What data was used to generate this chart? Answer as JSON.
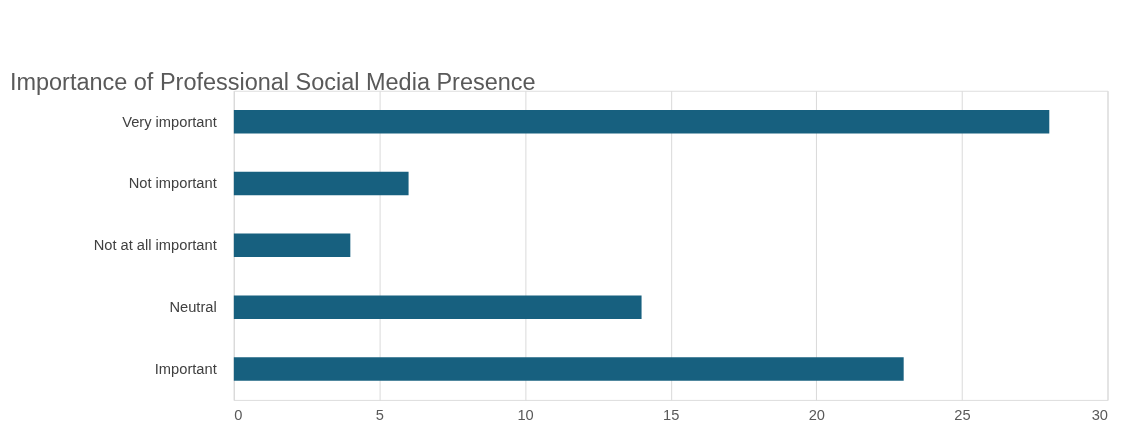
{
  "chart_data": {
    "type": "bar",
    "orientation": "horizontal",
    "title": "Importance of Professional Social Media Presence",
    "categories": [
      "Very important",
      "Not important",
      "Not at all important",
      "Neutral",
      "Important"
    ],
    "values": [
      28,
      6,
      4,
      14,
      23
    ],
    "color": "#17607f",
    "xlim": [
      0,
      30
    ],
    "xticks": [
      0,
      5,
      10,
      15,
      20,
      25,
      30
    ],
    "grid": "x"
  }
}
